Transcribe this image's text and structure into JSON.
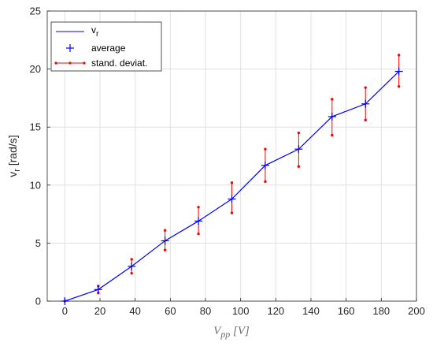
{
  "chart_data": {
    "type": "line",
    "title": "",
    "xlabel": {
      "main": "V",
      "sub": "pp",
      "unit": " [V]"
    },
    "ylabel": {
      "main": "v",
      "sub": "r",
      "unit": " [rad/s]"
    },
    "xlim": [
      -10,
      200
    ],
    "ylim": [
      0,
      25
    ],
    "xticks": [
      0,
      20,
      40,
      60,
      80,
      100,
      120,
      140,
      160,
      180,
      200
    ],
    "yticks": [
      0,
      5,
      10,
      15,
      20,
      25
    ],
    "grid": true,
    "legend_position": "top-left",
    "x": [
      0,
      19,
      38,
      57,
      76,
      95,
      114,
      133,
      152,
      171,
      190
    ],
    "series": [
      {
        "name": "v_r",
        "legend_main": "v",
        "legend_sub": "r",
        "style": "line",
        "color": "#0000ff",
        "values": [
          0,
          1.0,
          3.0,
          5.2,
          6.9,
          8.8,
          11.7,
          13.1,
          15.9,
          17.0,
          19.8
        ]
      },
      {
        "name": "average",
        "style": "plus-marker",
        "color": "#0000ff",
        "values": [
          0,
          1.0,
          3.0,
          5.2,
          6.9,
          8.8,
          11.7,
          13.1,
          15.9,
          17.0,
          19.8
        ]
      },
      {
        "name": "stand. deviat.",
        "style": "errorbar",
        "color": "#ff0000",
        "lower": [
          0,
          0.7,
          2.4,
          4.4,
          5.8,
          7.6,
          10.3,
          11.6,
          14.3,
          15.6,
          18.5
        ],
        "upper": [
          0,
          1.3,
          3.6,
          6.1,
          8.1,
          10.2,
          13.1,
          14.5,
          17.4,
          18.4,
          21.2
        ]
      }
    ]
  }
}
